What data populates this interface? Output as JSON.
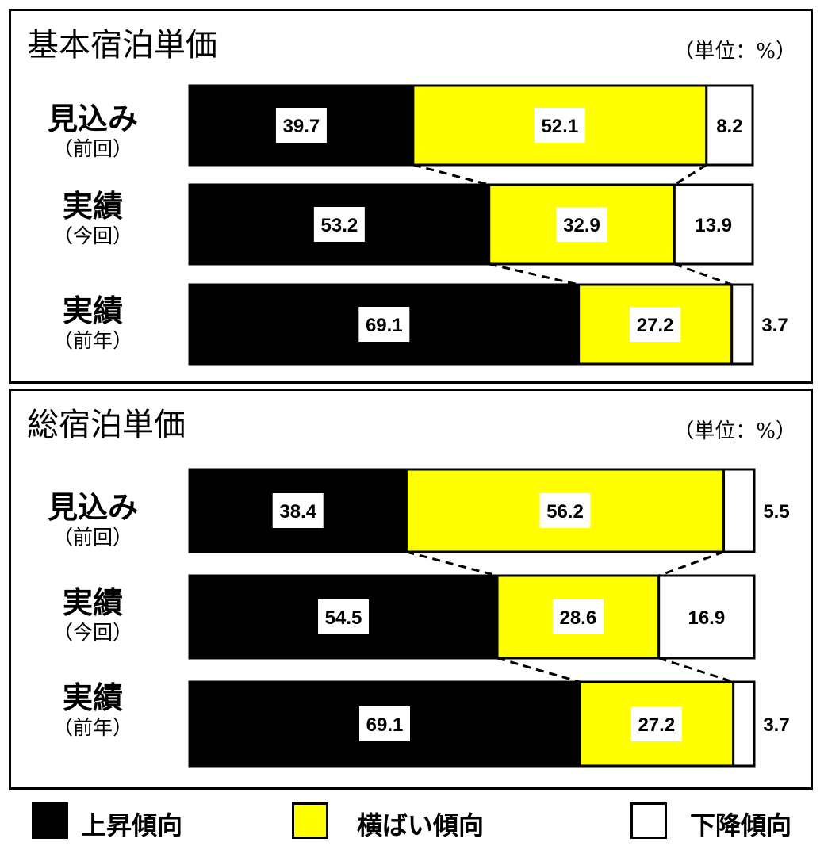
{
  "colors": {
    "up": "#000000",
    "flat": "#ffff00",
    "down": "#ffffff"
  },
  "legend": [
    {
      "key": "up",
      "label": "上昇傾向"
    },
    {
      "key": "flat",
      "label": "横ばい傾向"
    },
    {
      "key": "down",
      "label": "下降傾向"
    }
  ],
  "chart_data": [
    {
      "type": "bar",
      "stacked": true,
      "orientation": "horizontal",
      "title": "基本宿泊単価",
      "unit": "（単位：%）",
      "categories": [
        {
          "main": "見込み",
          "sub": "（前回）"
        },
        {
          "main": "実績",
          "sub": "（今回）"
        },
        {
          "main": "実績",
          "sub": "（前年）"
        }
      ],
      "series": [
        {
          "name": "上昇傾向",
          "key": "up",
          "values": [
            39.7,
            53.2,
            69.1
          ]
        },
        {
          "name": "横ばい傾向",
          "key": "flat",
          "values": [
            52.1,
            32.9,
            27.2
          ]
        },
        {
          "name": "下降傾向",
          "key": "down",
          "values": [
            8.2,
            13.9,
            3.7
          ]
        }
      ],
      "xlim": [
        0,
        100
      ]
    },
    {
      "type": "bar",
      "stacked": true,
      "orientation": "horizontal",
      "title": "総宿泊単価",
      "unit": "（単位：%）",
      "categories": [
        {
          "main": "見込み",
          "sub": "（前回）"
        },
        {
          "main": "実績",
          "sub": "（今回）"
        },
        {
          "main": "実績",
          "sub": "（前年）"
        }
      ],
      "series": [
        {
          "name": "上昇傾向",
          "key": "up",
          "values": [
            38.4,
            54.5,
            69.1
          ]
        },
        {
          "name": "横ばい傾向",
          "key": "flat",
          "values": [
            56.2,
            28.6,
            27.2
          ]
        },
        {
          "name": "下降傾向",
          "key": "down",
          "values": [
            5.5,
            16.9,
            3.7
          ]
        }
      ],
      "xlim": [
        0,
        100
      ]
    }
  ]
}
